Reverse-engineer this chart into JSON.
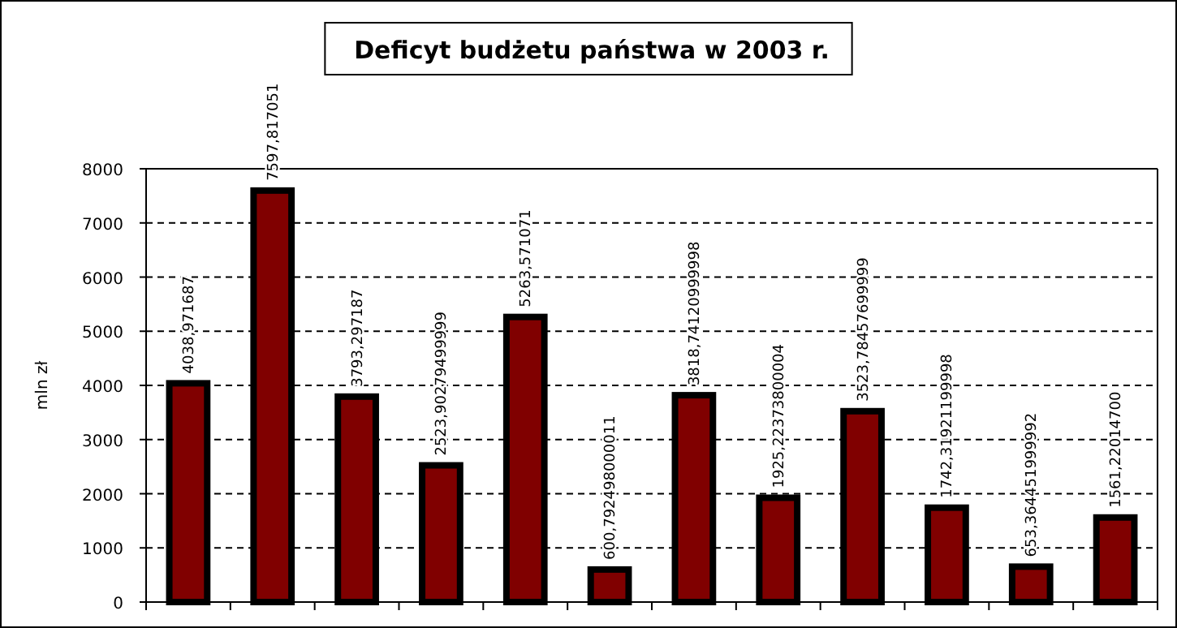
{
  "chart_data": {
    "type": "bar",
    "title": "Deficyt  budżetu państwa w 2003 r.",
    "ylabel": "mln zł",
    "categories": [
      null,
      null,
      null,
      null,
      null,
      null,
      null,
      null,
      null,
      null,
      null,
      null
    ],
    "values": [
      4038.971687,
      7597.817051,
      3793.297187,
      2523.90279499999,
      5263.571071,
      600.792498000011,
      3818.74120999998,
      1925.22373800004,
      3523.78457699999,
      1742.31921199998,
      653.364451999992,
      1561.220147
    ],
    "value_labels": [
      "4038,971687",
      "7597,817051",
      "3793,297187",
      "2523,90279499999",
      "5263,571071",
      "600,792498000011",
      "3818,74120999998",
      "1925,22373800004",
      "3523,78457699999",
      "1742,31921199998",
      "653,364451999992",
      "1561,22014700"
    ],
    "color": "#800000",
    "ylim": [
      0,
      8000
    ],
    "yticks": [
      0,
      1000,
      2000,
      3000,
      4000,
      5000,
      6000,
      7000,
      8000
    ],
    "grid": "y"
  }
}
